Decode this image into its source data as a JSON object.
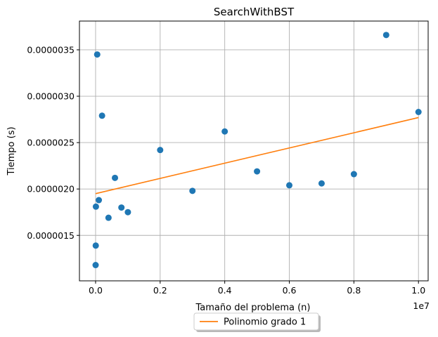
{
  "chart_data": {
    "type": "scatter",
    "title": "SearchWithBST",
    "xlabel": "Tamaño del problema (n)",
    "ylabel": "Tiempo (s)",
    "x_offset_label": "1e7",
    "xlim": [
      -0.05,
      1.03
    ],
    "ylim": [
      1.01e-06,
      3.81e-06
    ],
    "x_ticks": [
      0.0,
      0.2,
      0.4,
      0.6,
      0.8,
      1.0
    ],
    "x_tick_labels": [
      "0.0",
      "0.2",
      "0.4",
      "0.6",
      "0.8",
      "1.0"
    ],
    "y_ticks": [
      1.5e-06,
      2e-06,
      2.5e-06,
      3e-06,
      3.5e-06
    ],
    "y_tick_labels": [
      "0.0000015",
      "0.0000020",
      "0.0000025",
      "0.0000030",
      "0.0000035"
    ],
    "grid": true,
    "legend_position": "bottom-center",
    "series": [
      {
        "kind": "scatter",
        "color": "#1f77b4",
        "x": [
          0.0001,
          0.0005,
          0.001,
          0.005,
          0.01,
          0.02,
          0.04,
          0.06,
          0.08,
          0.1,
          0.2,
          0.3,
          0.4,
          0.5,
          0.6,
          0.7,
          0.8,
          0.9,
          1.0
        ],
        "y": [
          1.18e-06,
          1.39e-06,
          1.81e-06,
          3.45e-06,
          1.88e-06,
          2.79e-06,
          1.69e-06,
          2.12e-06,
          1.8e-06,
          1.75e-06,
          2.42e-06,
          1.98e-06,
          2.62e-06,
          2.19e-06,
          2.04e-06,
          2.06e-06,
          2.16e-06,
          3.66e-06,
          2.83e-06
        ]
      },
      {
        "kind": "line",
        "name": "Polinomio grado 1",
        "color": "#ff7f0e",
        "x": [
          0.0,
          1.0
        ],
        "y": [
          1.95e-06,
          2.77e-06
        ]
      }
    ]
  }
}
